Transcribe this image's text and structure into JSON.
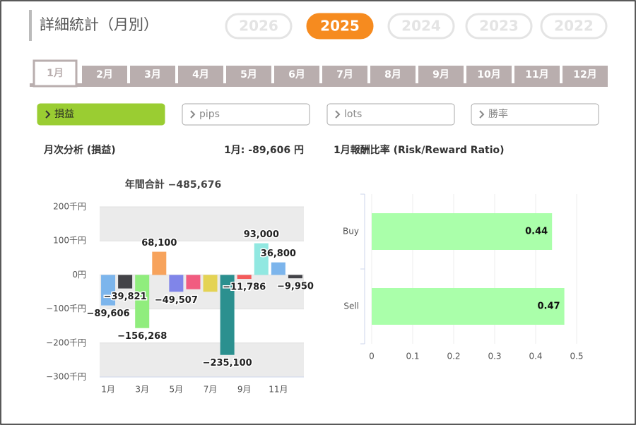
{
  "header": {
    "title": "詳細統計（月別）"
  },
  "years": [
    {
      "label": "2026",
      "active": false
    },
    {
      "label": "2025",
      "active": true
    },
    {
      "label": "2024",
      "active": false
    },
    {
      "label": "2023",
      "active": false
    },
    {
      "label": "2022",
      "active": false
    }
  ],
  "months": [
    {
      "label": "1月",
      "active": true
    },
    {
      "label": "2月",
      "active": false
    },
    {
      "label": "3月",
      "active": false
    },
    {
      "label": "4月",
      "active": false
    },
    {
      "label": "5月",
      "active": false
    },
    {
      "label": "6月",
      "active": false
    },
    {
      "label": "7月",
      "active": false
    },
    {
      "label": "8月",
      "active": false
    },
    {
      "label": "9月",
      "active": false
    },
    {
      "label": "10月",
      "active": false
    },
    {
      "label": "11月",
      "active": false
    },
    {
      "label": "12月",
      "active": false
    }
  ],
  "metrics": [
    {
      "label": "損益",
      "active": true
    },
    {
      "label": "pips",
      "active": false
    },
    {
      "label": "lots",
      "active": false
    },
    {
      "label": "勝率",
      "active": false
    }
  ],
  "sections": {
    "left_title": "月次分析 (損益)",
    "left_summary": "1月:  -89,606 円",
    "right_title": "1月報酬比率 (Risk/Reward Ratio)"
  },
  "chart_data": [
    {
      "type": "bar",
      "subtitle": "年間合計 −485,676",
      "categories": [
        "1月",
        null,
        "3月",
        null,
        "5月",
        null,
        "7月",
        null,
        "9月",
        null,
        "11月",
        null
      ],
      "values": [
        -89606,
        -39821,
        -156268,
        68100,
        -49507,
        -42000,
        -49538,
        -235100,
        -11786,
        93000,
        36800,
        -9950
      ],
      "value_labels": [
        "−89,606",
        "−39,821",
        "−156,268",
        "68,100",
        "−49,507",
        null,
        null,
        "−235,100",
        "−11,786",
        "93,000",
        "36,800",
        "−9,950"
      ],
      "colors": [
        "#7cb5ec",
        "#434348",
        "#90ed7d",
        "#f7a35c",
        "#8085e9",
        "#f15c80",
        "#e4d354",
        "#2b908f",
        "#f45b5b",
        "#91e8e1",
        "#7cb5ec",
        "#434348"
      ],
      "ylim": [
        -300000,
        200000
      ],
      "yticks": [
        {
          "value": -300000,
          "label": "−300千円"
        },
        {
          "value": -200000,
          "label": "−200千円"
        },
        {
          "value": -100000,
          "label": "−100千円"
        },
        {
          "value": 0,
          "label": "0円"
        },
        {
          "value": 100000,
          "label": "100千円"
        },
        {
          "value": 200000,
          "label": "200千円"
        }
      ],
      "banded_grid": true
    },
    {
      "type": "hbar",
      "categories": [
        "Buy",
        "Sell"
      ],
      "values": [
        0.44,
        0.47
      ],
      "color": "#aaffaa",
      "xlim": [
        0,
        0.5
      ],
      "xticks": [
        0,
        0.1,
        0.2,
        0.3,
        0.4,
        0.5
      ],
      "grid": true
    }
  ]
}
